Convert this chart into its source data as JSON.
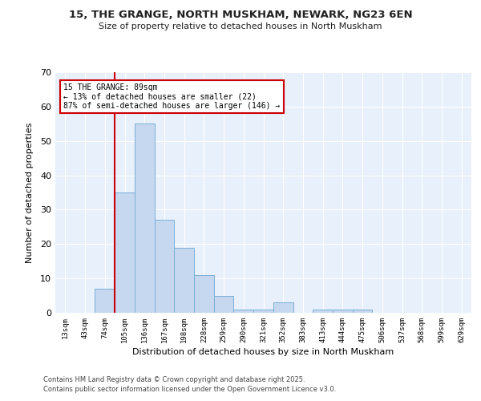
{
  "title1": "15, THE GRANGE, NORTH MUSKHAM, NEWARK, NG23 6EN",
  "title2": "Size of property relative to detached houses in North Muskham",
  "xlabel": "Distribution of detached houses by size in North Muskham",
  "ylabel": "Number of detached properties",
  "categories": [
    "13sqm",
    "43sqm",
    "74sqm",
    "105sqm",
    "136sqm",
    "167sqm",
    "198sqm",
    "228sqm",
    "259sqm",
    "290sqm",
    "321sqm",
    "352sqm",
    "383sqm",
    "413sqm",
    "444sqm",
    "475sqm",
    "506sqm",
    "537sqm",
    "568sqm",
    "599sqm",
    "629sqm"
  ],
  "values": [
    0,
    0,
    7,
    35,
    55,
    27,
    19,
    11,
    5,
    1,
    1,
    3,
    0,
    1,
    1,
    1,
    0,
    0,
    0,
    0,
    0
  ],
  "bar_color": "#c5d8f0",
  "bar_edge_color": "#7bafd4",
  "background_color": "#e8f0fb",
  "grid_color": "#ffffff",
  "red_line_x": 2.5,
  "annotation_text": "15 THE GRANGE: 89sqm\n← 13% of detached houses are smaller (22)\n87% of semi-detached houses are larger (146) →",
  "annotation_box_color": "#ffffff",
  "annotation_box_edge": "#cc0000",
  "ylim": [
    0,
    70
  ],
  "yticks": [
    0,
    10,
    20,
    30,
    40,
    50,
    60,
    70
  ],
  "footer1": "Contains HM Land Registry data © Crown copyright and database right 2025.",
  "footer2": "Contains public sector information licensed under the Open Government Licence v3.0."
}
